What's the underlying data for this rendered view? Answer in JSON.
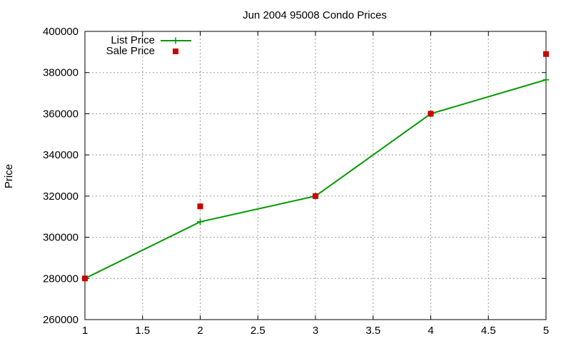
{
  "chart_data": {
    "type": "line",
    "title": "Jun 2004 95008 Condo Prices",
    "xlabel": "",
    "ylabel": "Price",
    "xlim": [
      1,
      5
    ],
    "ylim": [
      260000,
      400000
    ],
    "xticks": [
      1,
      1.5,
      2,
      2.5,
      3,
      3.5,
      4,
      4.5,
      5
    ],
    "xtick_labels": [
      "1",
      "1.5",
      "2",
      "2.5",
      "3",
      "3.5",
      "4",
      "4.5",
      "5"
    ],
    "yticks": [
      260000,
      280000,
      300000,
      320000,
      340000,
      360000,
      380000,
      400000
    ],
    "ytick_labels": [
      "260000",
      "280000",
      "300000",
      "320000",
      "340000",
      "360000",
      "380000",
      "400000"
    ],
    "grid": true,
    "legend_position": "top-left",
    "series": [
      {
        "name": "List Price",
        "style": "line-plus",
        "color": "#009900",
        "x": [
          1,
          2,
          3,
          4,
          5
        ],
        "y": [
          280000,
          307500,
          320000,
          360000,
          376500
        ]
      },
      {
        "name": "Sale Price",
        "style": "square-markers",
        "color": "#cc0000",
        "x": [
          1,
          2,
          3,
          4,
          5
        ],
        "y": [
          280000,
          315000,
          320000,
          360000,
          389000
        ]
      }
    ]
  }
}
